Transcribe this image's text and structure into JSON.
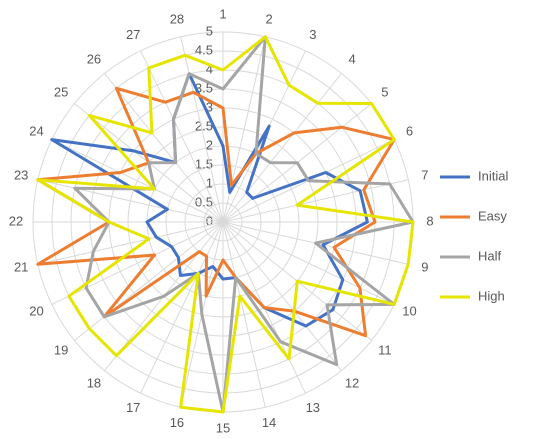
{
  "chart_data": {
    "type": "radar",
    "categories": [
      "1",
      "2",
      "3",
      "4",
      "5",
      "6",
      "7",
      "8",
      "9",
      "10",
      "11",
      "12",
      "13",
      "14",
      "15",
      "16",
      "17",
      "18",
      "19",
      "20",
      "21",
      "22",
      "23",
      "24",
      "25",
      "26",
      "27",
      "28"
    ],
    "rlim": [
      0,
      5
    ],
    "rticks": [
      0,
      0.5,
      1,
      1.5,
      2,
      2.5,
      3,
      3.5,
      4,
      4.5,
      5
    ],
    "grid": true,
    "legend": "right",
    "series": [
      {
        "name": "Initial",
        "color": "#4472c4",
        "values": [
          2,
          0.8,
          2.8,
          1,
          1,
          3,
          3.7,
          3.8,
          2.7,
          3.5,
          3.7,
          3.5,
          2.5,
          1.5,
          1.5,
          1.2,
          1.5,
          1.8,
          1.5,
          1.5,
          1.8,
          2,
          1.5,
          5,
          3,
          2,
          3,
          4
        ]
      },
      {
        "name": "Easy",
        "color": "#ed7d31",
        "values": [
          3,
          1,
          2,
          3,
          4,
          5,
          3.8,
          4,
          3,
          4,
          4.8,
          3,
          2.5,
          1.5,
          1,
          2,
          1,
          1,
          4,
          2,
          5,
          3,
          5,
          3,
          2.5,
          4.5,
          3.5,
          3.5
        ]
      },
      {
        "name": "Half",
        "color": "#a5a5a5",
        "values": [
          3.5,
          5,
          2,
          2,
          2.5,
          2.5,
          4.5,
          5,
          2.5,
          5,
          3.5,
          4.8,
          3.5,
          1.5,
          5,
          2.5,
          1.5,
          2.5,
          4,
          4,
          3.5,
          3,
          4,
          2,
          2.5,
          2,
          3,
          4
        ]
      },
      {
        "name": "High",
        "color": "#e5e500",
        "values": [
          4,
          5,
          4,
          4,
          5,
          5,
          2,
          5,
          5,
          5,
          2.5,
          3,
          4,
          2,
          5,
          5,
          1.5,
          4.5,
          4.5,
          4.5,
          2,
          3,
          5,
          2,
          4.5,
          3,
          4.5,
          4.5
        ]
      }
    ]
  }
}
